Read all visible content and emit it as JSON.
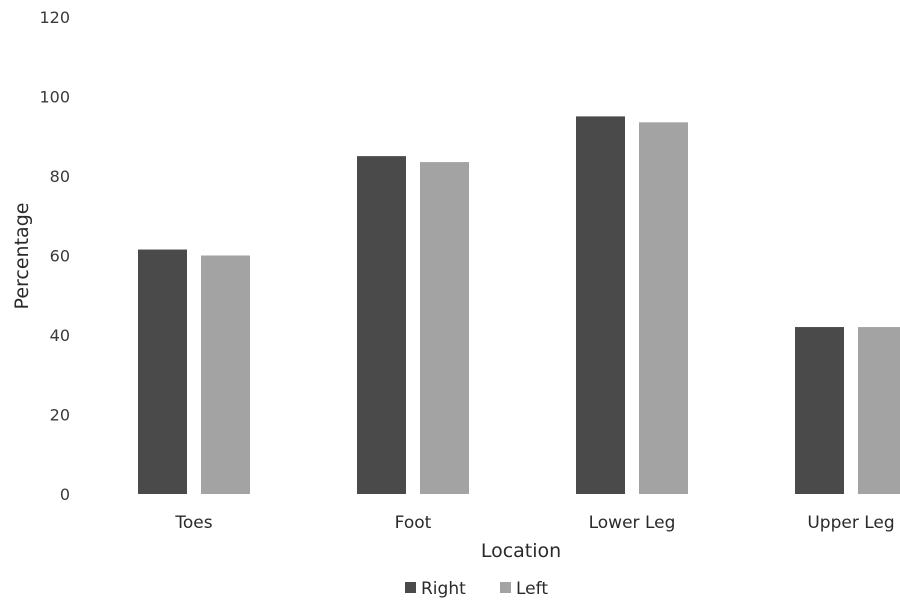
{
  "chart_data": {
    "type": "bar",
    "title": "",
    "xlabel": "Location",
    "ylabel": "Percentage",
    "categories": [
      "Toes",
      "Foot",
      "Lower Leg",
      "Upper Leg"
    ],
    "series": [
      {
        "name": "Right",
        "color": "#4a4a4a",
        "values": [
          61.5,
          85,
          95,
          42
        ]
      },
      {
        "name": "Left",
        "color": "#a3a3a3",
        "values": [
          60,
          83.5,
          93.5,
          42
        ]
      }
    ],
    "ylim": [
      0,
      120
    ],
    "yticks": [
      "0",
      "20",
      "40",
      "60",
      "80",
      "100",
      "120"
    ],
    "grid": false,
    "legend_position": "bottom"
  }
}
